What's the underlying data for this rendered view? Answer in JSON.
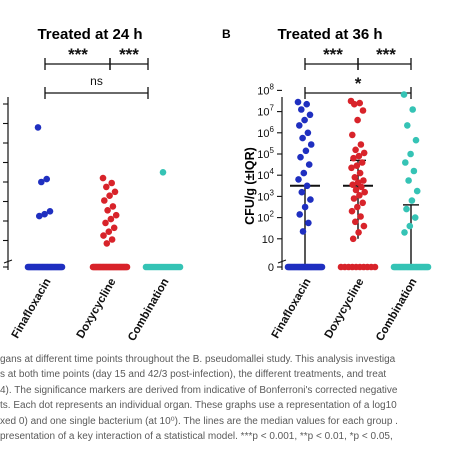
{
  "colors": {
    "finafloxacin": "#1f2fc0",
    "doxycycline": "#d8232a",
    "combination": "#35c3b5",
    "axis": "#111111"
  },
  "chart_data": [
    {
      "panel": "A",
      "panel_label": "",
      "type": "scatter",
      "title": "Treated at 24 h",
      "ylabel": "",
      "categories": [
        "Finafloxacin",
        "Doxycycline",
        "Combination"
      ],
      "series": [
        {
          "name": "Finafloxacin",
          "zeros": 30,
          "values": [
            6.8,
            4.15,
            4.0,
            2.5,
            2.35,
            2.25
          ]
        },
        {
          "name": "Doxycycline",
          "zeros": 34,
          "values": [
            4.2,
            3.95,
            3.75,
            3.5,
            3.3,
            3.05,
            2.75,
            2.55,
            2.3,
            2.1,
            1.9,
            1.65,
            1.45,
            1.25,
            1.05,
            0.85
          ]
        },
        {
          "name": "Combination",
          "zeros": 18,
          "values": [
            4.5
          ]
        }
      ],
      "significance": [
        {
          "from": 0,
          "to": 1,
          "label": "***"
        },
        {
          "from": 1,
          "to": 2,
          "label": "***"
        },
        {
          "from": 0,
          "to": 2,
          "label": "ns"
        }
      ]
    },
    {
      "panel": "B",
      "panel_label": "B",
      "type": "scatter",
      "title": "Treated at 36 h",
      "ylabel": "CFU/g (±IQR)",
      "ylim": [
        0,
        8
      ],
      "yticks": [
        "0",
        "10",
        "10^2",
        "10^3",
        "10^4",
        "10^5",
        "10^6",
        "10^7",
        "10^8"
      ],
      "categories": [
        "Finafloxacin",
        "Doxycycline",
        "Combination"
      ],
      "series": [
        {
          "name": "Finafloxacin",
          "zeros": 30,
          "median": 3.5,
          "q1": 0,
          "q3": 3.5,
          "values": [
            7.45,
            7.35,
            7.1,
            6.85,
            6.6,
            6.35,
            6.0,
            5.75,
            5.45,
            5.15,
            4.85,
            4.5,
            4.1,
            3.8,
            3.5,
            3.2,
            2.85,
            2.5,
            2.15,
            1.75,
            1.35
          ]
        },
        {
          "name": "Doxycycline",
          "zeros": 10,
          "median": 3.5,
          "q1": 1.0,
          "q3": 4.7,
          "values": [
            7.5,
            7.4,
            7.35,
            7.05,
            6.6,
            5.9,
            5.45,
            5.2,
            5.05,
            4.9,
            4.8,
            4.6,
            4.45,
            4.35,
            4.1,
            3.9,
            3.75,
            3.65,
            3.55,
            3.45,
            3.3,
            3.2,
            3.05,
            2.9,
            2.7,
            2.5,
            2.3,
            2.05,
            1.8,
            1.6,
            1.3,
            1.0
          ]
        },
        {
          "name": "Combination",
          "zeros": 25,
          "median": 0,
          "q1": 0,
          "q3": 2.6,
          "values": [
            7.8,
            7.1,
            6.35,
            5.65,
            5.0,
            4.6,
            4.2,
            3.75,
            3.25,
            2.8,
            2.4,
            2.0,
            1.6,
            1.3
          ]
        }
      ],
      "significance": [
        {
          "from": 0,
          "to": 1,
          "label": "***"
        },
        {
          "from": 1,
          "to": 2,
          "label": "***"
        },
        {
          "from": 0,
          "to": 2,
          "label": "*"
        }
      ]
    }
  ],
  "caption": {
    "lines": [
      "gans at different time points throughout the B. pseudomallei study. This analysis investiga",
      "s at both time points (day 15 and 42/3 post-infection), the different treatments, and treat",
      "4). The significance markers are derived from indicative of Bonferroni's corrected negative",
      "ts. Each dot represents an individual organ. These graphs use a representation of a log10",
      "xed 0) and one single bacterium (at 10⁰). The lines are the median values for each group .",
      "presentation of a key interaction of a statistical model. ***p < 0.001, **p < 0.01, *p < 0.05,"
    ]
  }
}
